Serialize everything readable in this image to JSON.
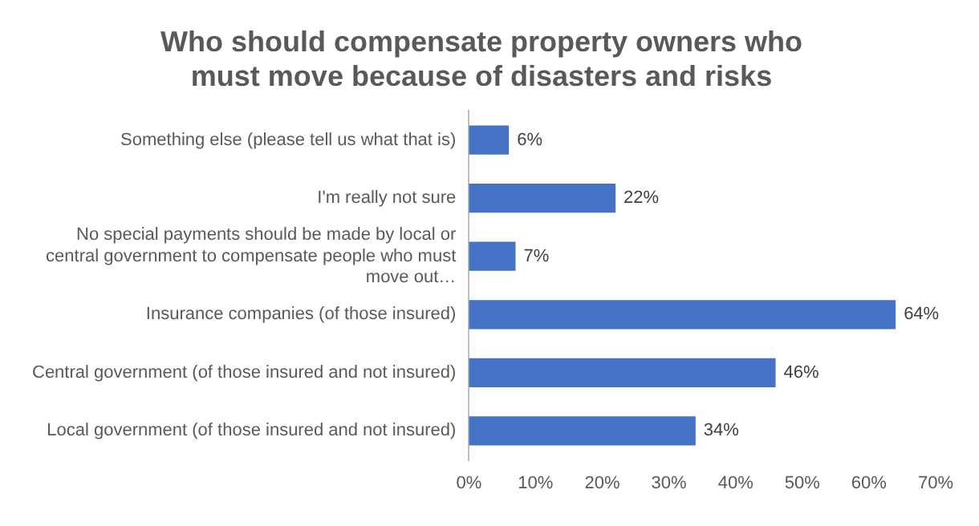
{
  "chart_data": {
    "type": "bar",
    "orientation": "horizontal",
    "title": "Who should compensate property owners who must move because of disasters and risks",
    "categories": [
      "Something else (please tell us what that is)",
      "I'm really not sure",
      "No special payments should be made by local or central government to compensate people who must move out…",
      "Insurance companies (of those insured)",
      "Central government (of those insured and not insured)",
      "Local government (of those insured and not insured)"
    ],
    "values": [
      6,
      22,
      7,
      64,
      46,
      34
    ],
    "value_labels": [
      "6%",
      "22%",
      "7%",
      "64%",
      "46%",
      "34%"
    ],
    "color": "#4472c4",
    "xlim": [
      0,
      70
    ],
    "xticks": [
      {
        "value": 0,
        "label": "0%"
      },
      {
        "value": 10,
        "label": "10%"
      },
      {
        "value": 20,
        "label": "20%"
      },
      {
        "value": 30,
        "label": "30%"
      },
      {
        "value": 40,
        "label": "40%"
      },
      {
        "value": 50,
        "label": "50%"
      },
      {
        "value": 60,
        "label": "60%"
      },
      {
        "value": 70,
        "label": "70%"
      }
    ],
    "grid": false,
    "legend": false
  }
}
